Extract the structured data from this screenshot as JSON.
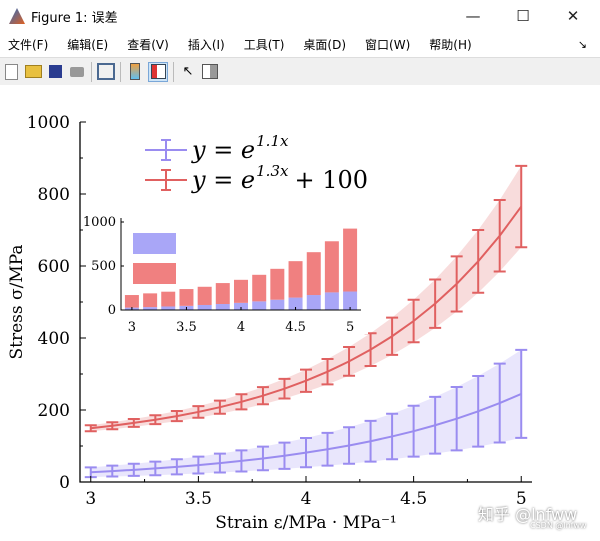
{
  "window": {
    "title": "Figure 1: 误差",
    "minimize": "—",
    "maximize": "☐",
    "close": "✕"
  },
  "menu": [
    "文件(F)",
    "编辑(E)",
    "查看(V)",
    "插入(I)",
    "工具(T)",
    "桌面(D)",
    "窗口(W)",
    "帮助(H)"
  ],
  "toolbar": [
    "new-file",
    "open-folder",
    "save",
    "print",
    "link-plot",
    "colorbar",
    "legend",
    "pointer",
    "property-inspector"
  ],
  "watermark": {
    "main": "知乎 @lnfww",
    "sub": "CSDN @lnfww"
  },
  "chart_data": [
    {
      "type": "line",
      "xlabel": "Strain  ε/MPa · MPa⁻¹",
      "ylabel": "Stress  σ/MPa",
      "xlim": [
        2.95,
        5.05
      ],
      "ylim": [
        0,
        1000
      ],
      "xticks": [
        "3",
        "3.5",
        "4",
        "4.5",
        "5"
      ],
      "yticks": [
        "0",
        "200",
        "400",
        "600",
        "800",
        "1000"
      ],
      "legend_position": "top-left",
      "x": [
        3.0,
        3.1,
        3.2,
        3.3,
        3.4,
        3.5,
        3.6,
        3.7,
        3.8,
        3.9,
        4.0,
        4.1,
        4.2,
        4.3,
        4.4,
        4.5,
        4.6,
        4.7,
        4.8,
        4.9,
        5.0
      ],
      "series": [
        {
          "name": "y = e^{1.1x}",
          "legend_main": "y = e",
          "legend_exp": "1.1x",
          "legend_tail": "",
          "color": "#9a8cf0",
          "values": [
            27.1,
            30.3,
            33.8,
            37.7,
            42.1,
            47.0,
            52.5,
            58.6,
            65.4,
            73.0,
            81.5,
            90.9,
            101.5,
            113.3,
            126.5,
            141.2,
            157.6,
            175.9,
            196.4,
            219.2,
            244.7
          ],
          "errors": [
            13.6,
            15.1,
            16.9,
            18.9,
            21.0,
            23.5,
            26.2,
            29.3,
            32.7,
            36.5,
            40.7,
            45.5,
            50.7,
            56.6,
            63.2,
            70.6,
            78.8,
            88.0,
            98.2,
            109.6,
            122.3
          ]
        },
        {
          "name": "y = e^{1.3x} + 100",
          "legend_main": "y = e",
          "legend_exp": "1.3x",
          "legend_tail": "+ 100",
          "color": "#e06060",
          "values": [
            149.4,
            156.3,
            164.1,
            173.0,
            183.1,
            194.6,
            207.8,
            222.7,
            239.8,
            259.2,
            281.3,
            306.4,
            335.1,
            367.7,
            404.9,
            447.2,
            495.4,
            550.3,
            612.9,
            684.1,
            765.1
          ],
          "errors": [
            8.4,
            9.6,
            10.9,
            12.4,
            14.1,
            16.1,
            18.3,
            20.9,
            23.8,
            27.1,
            30.8,
            35.1,
            40.0,
            45.5,
            51.8,
            59.0,
            67.2,
            76.6,
            87.2,
            99.3,
            113.1
          ]
        }
      ]
    },
    {
      "type": "bar",
      "stacked": true,
      "xlim": [
        2.9,
        5.1
      ],
      "ylim": [
        0,
        1000
      ],
      "xticks": [
        "3",
        "3.5",
        "4",
        "4.5",
        "5"
      ],
      "yticks": [
        "0",
        "500",
        "1000"
      ],
      "x": [
        3.0,
        3.167,
        3.333,
        3.5,
        3.667,
        3.833,
        4.0,
        4.167,
        4.333,
        4.5,
        4.667,
        4.833,
        5.0
      ],
      "series": [
        {
          "color": "#a9a6f7",
          "values": [
            27,
            33,
            40,
            47,
            57,
            68,
            81,
            98,
            117,
            141,
            170,
            200,
            210
          ]
        },
        {
          "color": "#f08080",
          "values": [
            143,
            156,
            168,
            191,
            207,
            238,
            262,
            302,
            351,
            414,
            487,
            581,
            715
          ]
        }
      ]
    }
  ]
}
